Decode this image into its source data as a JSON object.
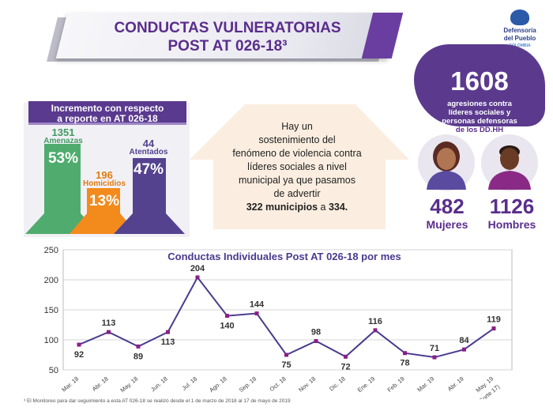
{
  "header": {
    "title_line1": "CONDUCTAS VULNERATORIAS",
    "title_line2": "POST AT 026-18³"
  },
  "logo": {
    "line1": "Defensoría",
    "line2": "del Pueblo",
    "line3": "COLOMBIA"
  },
  "increase_panel": {
    "title_line1": "Incremento con respecto",
    "title_line2": "a reporte en AT 026-18",
    "bars": [
      {
        "count": "1351",
        "label": "Amenazas",
        "percent": "53%",
        "value": 53,
        "color": "#4fac6e"
      },
      {
        "count": "196",
        "label": "Homicidios",
        "percent": "13%",
        "value": 13,
        "color": "#f28a1c"
      },
      {
        "count": "44",
        "label": "Atentados",
        "percent": "47%",
        "value": 47,
        "color": "#54428f"
      }
    ]
  },
  "arrow_note": {
    "line1": "Hay un",
    "line2": "sostenimiento del",
    "line3": "fenómeno de violencia contra",
    "line4": "líderes sociales a nivel",
    "line5": "municipal ya que pasamos",
    "line6": "de advertir",
    "line7_bold": "322 municipios",
    "line7_mid": " a ",
    "line7_bold2": "334."
  },
  "aggression": {
    "total": "1608",
    "line1": "agresiones contra",
    "line2": "líderes sociales y",
    "line3": "personas defensoras",
    "line4": "de los DD.HH",
    "women_count": "482",
    "women_label": "Mujeres",
    "men_count": "1126",
    "men_label": "Hombres"
  },
  "chart_data": {
    "type": "line",
    "title": "Conductas Individuales Post AT 026-18 por mes",
    "categories": [
      "Mar. 18",
      "Abr. 18",
      "May. 18",
      "Jun. 18",
      "Jul. 18",
      "Ago. 18",
      "Sep. 18",
      "Oct. 18",
      "Nov. 18",
      "Dic. 18",
      "Ene. 19",
      "Feb. 19",
      "Mar. 19",
      "Abr. 19",
      "May. 19 (Corte 17)"
    ],
    "values": [
      92,
      113,
      89,
      113,
      204,
      140,
      144,
      75,
      98,
      72,
      116,
      78,
      71,
      84,
      119
    ],
    "ylim": [
      50,
      250
    ],
    "yticks": [
      "50",
      "100",
      "150",
      "200",
      "250"
    ],
    "grid": true,
    "line_color": "#4a3a8f",
    "marker_color": "#8a1f86"
  },
  "footnote": "³ El Monitoreo para dar seguimiento a esta AT 026-18 se realizó desde el 1 de marzo de 2018 al 17 de mayo de 2019"
}
